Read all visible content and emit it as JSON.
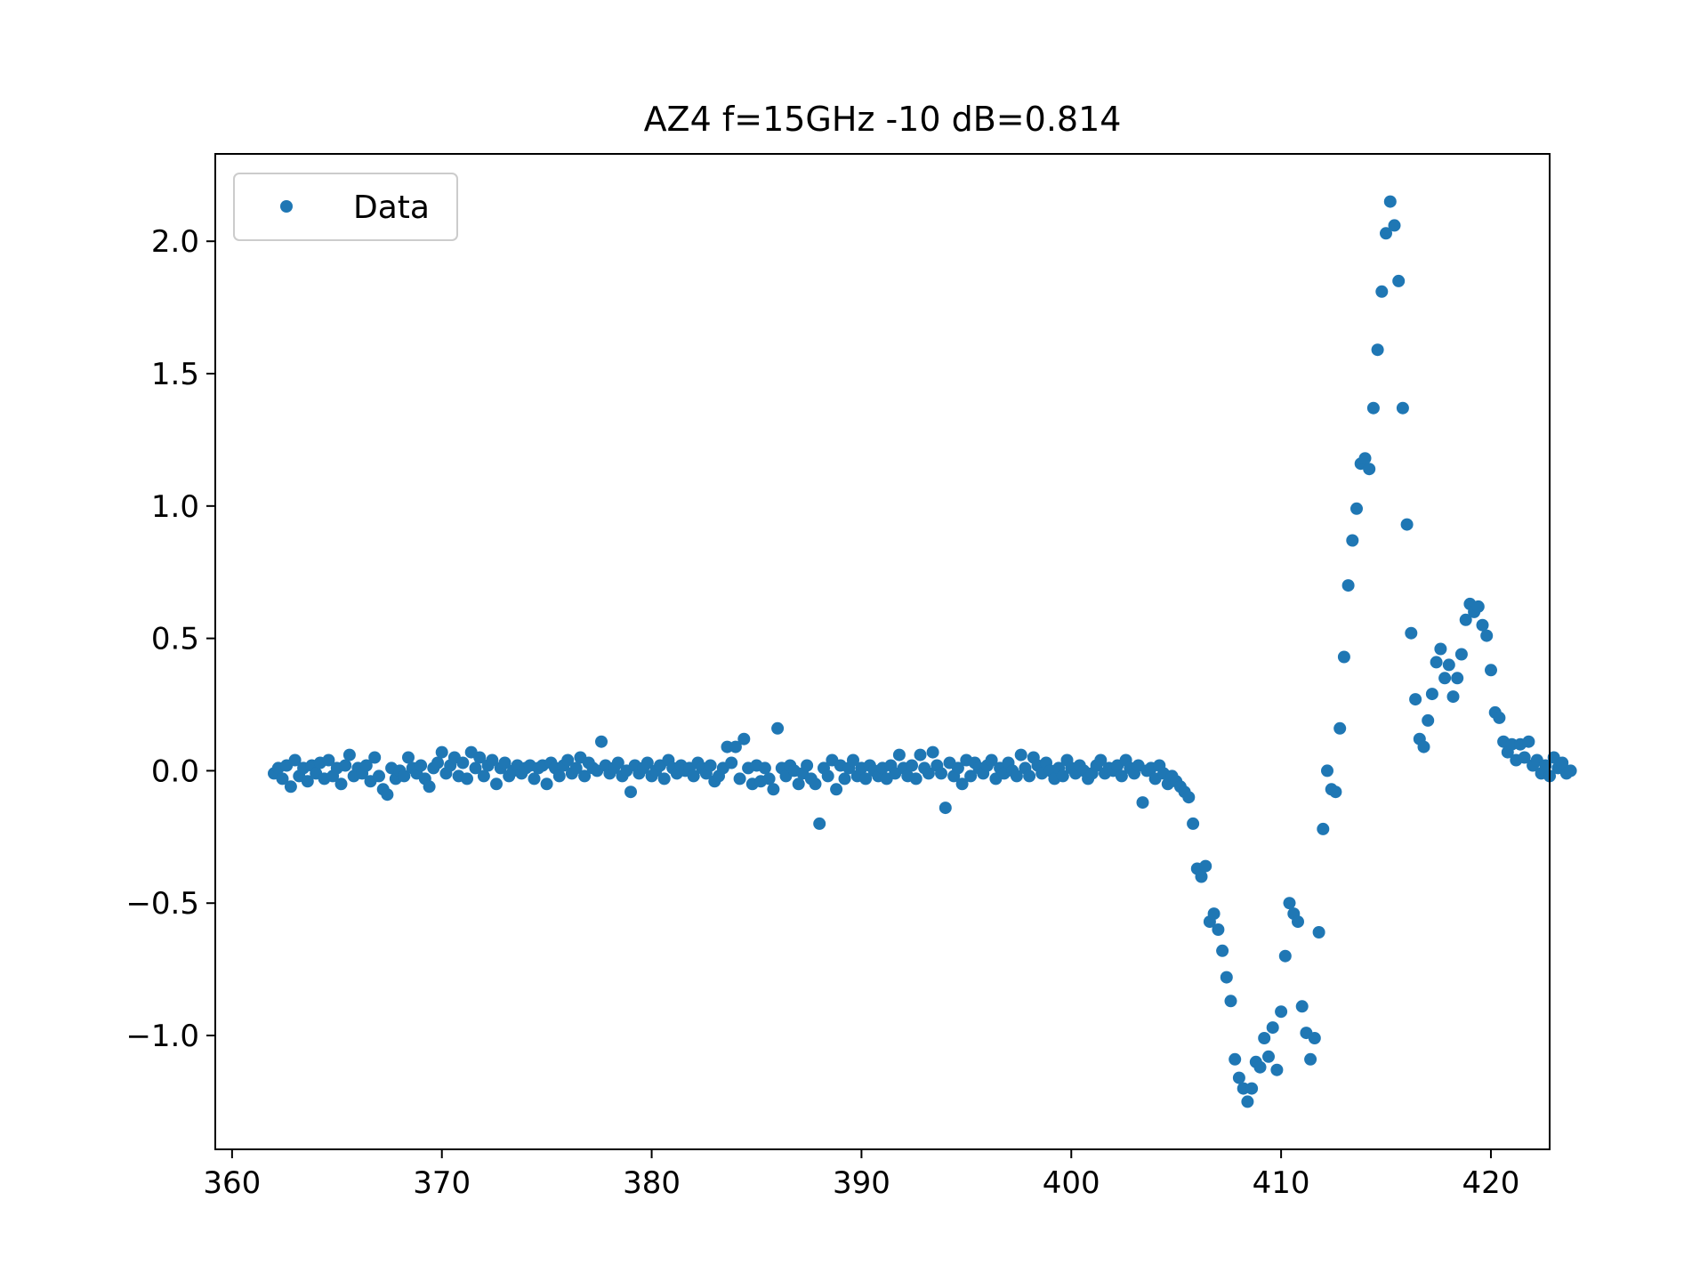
{
  "chart_data": {
    "type": "scatter",
    "title": "AZ4 f=15GHz -10 dB=0.814",
    "xlabel": "",
    "ylabel": "",
    "xlim": [
      359.2,
      422.8
    ],
    "ylim": [
      -1.43,
      2.33
    ],
    "xticks": [
      360,
      370,
      380,
      390,
      400,
      410,
      420
    ],
    "xtick_labels": [
      "360",
      "370",
      "380",
      "390",
      "400",
      "410",
      "420"
    ],
    "yticks": [
      -1.0,
      -0.5,
      0.0,
      0.5,
      1.0,
      1.5,
      2.0
    ],
    "ytick_labels": [
      "−1.0",
      "−0.5",
      "0.0",
      "0.5",
      "1.0",
      "1.5",
      "2.0"
    ],
    "grid": false,
    "legend": {
      "position": "top-left",
      "entries": [
        "Data"
      ]
    },
    "colors": {
      "series": "#1f77b4",
      "axes": "#000000",
      "legend_border": "#cccccc"
    },
    "series": [
      {
        "name": "Data",
        "points": [
          [
            362.0,
            -0.01
          ],
          [
            362.2,
            0.01
          ],
          [
            362.4,
            -0.03
          ],
          [
            362.6,
            0.02
          ],
          [
            362.8,
            -0.06
          ],
          [
            363.0,
            0.04
          ],
          [
            363.2,
            -0.02
          ],
          [
            363.4,
            0.01
          ],
          [
            363.6,
            -0.04
          ],
          [
            363.8,
            0.02
          ],
          [
            364.0,
            -0.01
          ],
          [
            364.2,
            0.03
          ],
          [
            364.4,
            -0.03
          ],
          [
            364.6,
            0.04
          ],
          [
            364.8,
            -0.02
          ],
          [
            365.0,
            0.01
          ],
          [
            365.2,
            -0.05
          ],
          [
            365.4,
            0.02
          ],
          [
            365.6,
            0.06
          ],
          [
            365.8,
            -0.02
          ],
          [
            366.0,
            0.01
          ],
          [
            366.2,
            -0.01
          ],
          [
            366.4,
            0.02
          ],
          [
            366.6,
            -0.04
          ],
          [
            366.8,
            0.05
          ],
          [
            367.0,
            -0.02
          ],
          [
            367.2,
            -0.07
          ],
          [
            367.4,
            -0.09
          ],
          [
            367.6,
            0.01
          ],
          [
            367.8,
            -0.03
          ],
          [
            368.0,
            0.0
          ],
          [
            368.2,
            -0.02
          ],
          [
            368.4,
            0.05
          ],
          [
            368.6,
            0.01
          ],
          [
            368.8,
            -0.01
          ],
          [
            369.0,
            0.02
          ],
          [
            369.2,
            -0.03
          ],
          [
            369.4,
            -0.06
          ],
          [
            369.6,
            0.01
          ],
          [
            369.8,
            0.03
          ],
          [
            370.0,
            0.07
          ],
          [
            370.2,
            -0.01
          ],
          [
            370.4,
            0.02
          ],
          [
            370.6,
            0.05
          ],
          [
            370.8,
            -0.02
          ],
          [
            371.0,
            0.03
          ],
          [
            371.2,
            -0.03
          ],
          [
            371.4,
            0.07
          ],
          [
            371.6,
            0.01
          ],
          [
            371.8,
            0.05
          ],
          [
            372.0,
            -0.02
          ],
          [
            372.2,
            0.02
          ],
          [
            372.4,
            0.04
          ],
          [
            372.6,
            -0.05
          ],
          [
            372.8,
            0.01
          ],
          [
            373.0,
            0.03
          ],
          [
            373.2,
            -0.02
          ],
          [
            373.4,
            0.0
          ],
          [
            373.6,
            0.02
          ],
          [
            373.8,
            -0.01
          ],
          [
            374.0,
            0.01
          ],
          [
            374.2,
            0.02
          ],
          [
            374.4,
            -0.03
          ],
          [
            374.6,
            0.01
          ],
          [
            374.8,
            0.02
          ],
          [
            375.0,
            -0.05
          ],
          [
            375.2,
            0.03
          ],
          [
            375.4,
            0.01
          ],
          [
            375.6,
            -0.02
          ],
          [
            375.8,
            0.02
          ],
          [
            376.0,
            0.04
          ],
          [
            376.2,
            -0.01
          ],
          [
            376.4,
            0.01
          ],
          [
            376.6,
            0.05
          ],
          [
            376.8,
            -0.02
          ],
          [
            377.0,
            0.03
          ],
          [
            377.2,
            0.01
          ],
          [
            377.4,
            0.0
          ],
          [
            377.6,
            0.11
          ],
          [
            377.8,
            0.02
          ],
          [
            378.0,
            -0.01
          ],
          [
            378.2,
            0.01
          ],
          [
            378.4,
            0.03
          ],
          [
            378.6,
            -0.02
          ],
          [
            378.8,
            0.0
          ],
          [
            379.0,
            -0.08
          ],
          [
            379.2,
            0.02
          ],
          [
            379.4,
            -0.01
          ],
          [
            379.6,
            0.01
          ],
          [
            379.8,
            0.03
          ],
          [
            380.0,
            -0.02
          ],
          [
            380.2,
            0.0
          ],
          [
            380.4,
            0.02
          ],
          [
            380.6,
            -0.03
          ],
          [
            380.8,
            0.04
          ],
          [
            381.0,
            0.01
          ],
          [
            381.2,
            -0.01
          ],
          [
            381.4,
            0.02
          ],
          [
            381.6,
            0.0
          ],
          [
            381.8,
            0.01
          ],
          [
            382.0,
            -0.02
          ],
          [
            382.2,
            0.03
          ],
          [
            382.4,
            0.01
          ],
          [
            382.6,
            -0.01
          ],
          [
            382.8,
            0.02
          ],
          [
            383.0,
            -0.04
          ],
          [
            383.2,
            -0.02
          ],
          [
            383.4,
            0.01
          ],
          [
            383.6,
            0.09
          ],
          [
            383.8,
            0.03
          ],
          [
            384.0,
            0.09
          ],
          [
            384.2,
            -0.03
          ],
          [
            384.4,
            0.12
          ],
          [
            384.6,
            0.01
          ],
          [
            384.8,
            -0.05
          ],
          [
            385.0,
            0.02
          ],
          [
            385.2,
            -0.04
          ],
          [
            385.4,
            0.01
          ],
          [
            385.6,
            -0.03
          ],
          [
            385.8,
            -0.07
          ],
          [
            386.0,
            0.16
          ],
          [
            386.2,
            0.01
          ],
          [
            386.4,
            -0.02
          ],
          [
            386.6,
            0.02
          ],
          [
            386.8,
            0.0
          ],
          [
            387.0,
            -0.05
          ],
          [
            387.2,
            -0.01
          ],
          [
            387.4,
            0.02
          ],
          [
            387.6,
            -0.03
          ],
          [
            387.8,
            -0.05
          ],
          [
            388.0,
            -0.2
          ],
          [
            388.2,
            0.01
          ],
          [
            388.4,
            -0.02
          ],
          [
            388.6,
            0.04
          ],
          [
            388.8,
            -0.07
          ],
          [
            389.0,
            0.02
          ],
          [
            389.2,
            -0.03
          ],
          [
            389.4,
            0.01
          ],
          [
            389.6,
            0.04
          ],
          [
            389.8,
            -0.02
          ],
          [
            390.0,
            0.01
          ],
          [
            390.2,
            -0.03
          ],
          [
            390.4,
            0.02
          ],
          [
            390.6,
            0.0
          ],
          [
            390.8,
            -0.02
          ],
          [
            391.0,
            0.01
          ],
          [
            391.2,
            -0.03
          ],
          [
            391.4,
            0.02
          ],
          [
            391.6,
            -0.01
          ],
          [
            391.8,
            0.06
          ],
          [
            392.0,
            0.01
          ],
          [
            392.2,
            -0.02
          ],
          [
            392.4,
            0.02
          ],
          [
            392.6,
            -0.03
          ],
          [
            392.8,
            0.06
          ],
          [
            393.0,
            0.01
          ],
          [
            393.2,
            -0.01
          ],
          [
            393.4,
            0.07
          ],
          [
            393.6,
            0.02
          ],
          [
            393.8,
            -0.01
          ],
          [
            394.0,
            -0.14
          ],
          [
            394.2,
            0.03
          ],
          [
            394.4,
            -0.02
          ],
          [
            394.6,
            0.01
          ],
          [
            394.8,
            -0.05
          ],
          [
            395.0,
            0.04
          ],
          [
            395.2,
            -0.02
          ],
          [
            395.4,
            0.03
          ],
          [
            395.6,
            0.01
          ],
          [
            395.8,
            -0.01
          ],
          [
            396.0,
            0.02
          ],
          [
            396.2,
            0.04
          ],
          [
            396.4,
            -0.03
          ],
          [
            396.6,
            0.01
          ],
          [
            396.8,
            -0.01
          ],
          [
            397.0,
            0.03
          ],
          [
            397.2,
            0.0
          ],
          [
            397.4,
            -0.02
          ],
          [
            397.6,
            0.06
          ],
          [
            397.8,
            0.01
          ],
          [
            398.0,
            -0.02
          ],
          [
            398.2,
            0.05
          ],
          [
            398.4,
            0.02
          ],
          [
            398.6,
            -0.01
          ],
          [
            398.8,
            0.03
          ],
          [
            399.0,
            0.0
          ],
          [
            399.2,
            -0.03
          ],
          [
            399.4,
            0.01
          ],
          [
            399.6,
            -0.02
          ],
          [
            399.8,
            0.04
          ],
          [
            400.0,
            0.01
          ],
          [
            400.2,
            -0.01
          ],
          [
            400.4,
            0.02
          ],
          [
            400.6,
            0.0
          ],
          [
            400.8,
            -0.03
          ],
          [
            401.0,
            -0.01
          ],
          [
            401.2,
            0.02
          ],
          [
            401.4,
            0.04
          ],
          [
            401.6,
            -0.01
          ],
          [
            401.8,
            0.01
          ],
          [
            402.0,
            0.0
          ],
          [
            402.2,
            0.02
          ],
          [
            402.4,
            -0.02
          ],
          [
            402.6,
            0.04
          ],
          [
            402.8,
            0.01
          ],
          [
            403.0,
            -0.01
          ],
          [
            403.2,
            0.02
          ],
          [
            403.4,
            -0.12
          ],
          [
            403.6,
            0.0
          ],
          [
            403.8,
            0.01
          ],
          [
            404.0,
            -0.03
          ],
          [
            404.2,
            0.02
          ],
          [
            404.4,
            -0.01
          ],
          [
            404.6,
            -0.05
          ],
          [
            404.8,
            -0.02
          ],
          [
            405.0,
            -0.04
          ],
          [
            405.2,
            -0.06
          ],
          [
            405.4,
            -0.08
          ],
          [
            405.6,
            -0.1
          ],
          [
            405.8,
            -0.2
          ],
          [
            406.0,
            -0.37
          ],
          [
            406.2,
            -0.4
          ],
          [
            406.4,
            -0.36
          ],
          [
            406.6,
            -0.57
          ],
          [
            406.8,
            -0.54
          ],
          [
            407.0,
            -0.6
          ],
          [
            407.2,
            -0.68
          ],
          [
            407.4,
            -0.78
          ],
          [
            407.6,
            -0.87
          ],
          [
            407.8,
            -1.09
          ],
          [
            408.0,
            -1.16
          ],
          [
            408.2,
            -1.2
          ],
          [
            408.4,
            -1.25
          ],
          [
            408.6,
            -1.2
          ],
          [
            408.8,
            -1.1
          ],
          [
            409.0,
            -1.12
          ],
          [
            409.2,
            -1.01
          ],
          [
            409.4,
            -1.08
          ],
          [
            409.6,
            -0.97
          ],
          [
            409.8,
            -1.13
          ],
          [
            410.0,
            -0.91
          ],
          [
            410.2,
            -0.7
          ],
          [
            410.4,
            -0.5
          ],
          [
            410.6,
            -0.54
          ],
          [
            410.8,
            -0.57
          ],
          [
            411.0,
            -0.89
          ],
          [
            411.2,
            -0.99
          ],
          [
            411.4,
            -1.09
          ],
          [
            411.6,
            -1.01
          ],
          [
            411.8,
            -0.61
          ],
          [
            412.0,
            -0.22
          ],
          [
            412.2,
            0.0
          ],
          [
            412.4,
            -0.07
          ],
          [
            412.6,
            -0.08
          ],
          [
            412.8,
            0.16
          ],
          [
            413.0,
            0.43
          ],
          [
            413.2,
            0.7
          ],
          [
            413.4,
            0.87
          ],
          [
            413.6,
            0.99
          ],
          [
            413.8,
            1.16
          ],
          [
            414.0,
            1.18
          ],
          [
            414.2,
            1.14
          ],
          [
            414.4,
            1.37
          ],
          [
            414.6,
            1.59
          ],
          [
            414.8,
            1.81
          ],
          [
            415.0,
            2.03
          ],
          [
            415.2,
            2.15
          ],
          [
            415.4,
            2.06
          ],
          [
            415.6,
            1.85
          ],
          [
            415.8,
            1.37
          ],
          [
            416.0,
            0.93
          ],
          [
            416.2,
            0.52
          ],
          [
            416.4,
            0.27
          ],
          [
            416.6,
            0.12
          ],
          [
            416.8,
            0.09
          ],
          [
            417.0,
            0.19
          ],
          [
            417.2,
            0.29
          ],
          [
            417.4,
            0.41
          ],
          [
            417.6,
            0.46
          ],
          [
            417.8,
            0.35
          ],
          [
            418.0,
            0.4
          ],
          [
            418.2,
            0.28
          ],
          [
            418.4,
            0.35
          ],
          [
            418.6,
            0.44
          ],
          [
            418.8,
            0.57
          ],
          [
            419.0,
            0.63
          ],
          [
            419.2,
            0.6
          ],
          [
            419.4,
            0.62
          ],
          [
            419.6,
            0.55
          ],
          [
            419.8,
            0.51
          ],
          [
            420.0,
            0.38
          ],
          [
            420.2,
            0.22
          ],
          [
            420.4,
            0.2
          ],
          [
            420.6,
            0.11
          ],
          [
            420.8,
            0.07
          ],
          [
            421.0,
            0.1
          ],
          [
            421.2,
            0.04
          ],
          [
            421.4,
            0.1
          ],
          [
            421.6,
            0.05
          ],
          [
            421.8,
            0.11
          ],
          [
            422.0,
            0.02
          ],
          [
            422.2,
            0.04
          ],
          [
            422.4,
            -0.01
          ],
          [
            422.6,
            0.02
          ],
          [
            422.8,
            -0.02
          ],
          [
            423.0,
            0.05
          ],
          [
            423.2,
            0.01
          ],
          [
            423.4,
            0.03
          ],
          [
            423.6,
            -0.01
          ],
          [
            423.8,
            0.0
          ]
        ]
      }
    ]
  }
}
